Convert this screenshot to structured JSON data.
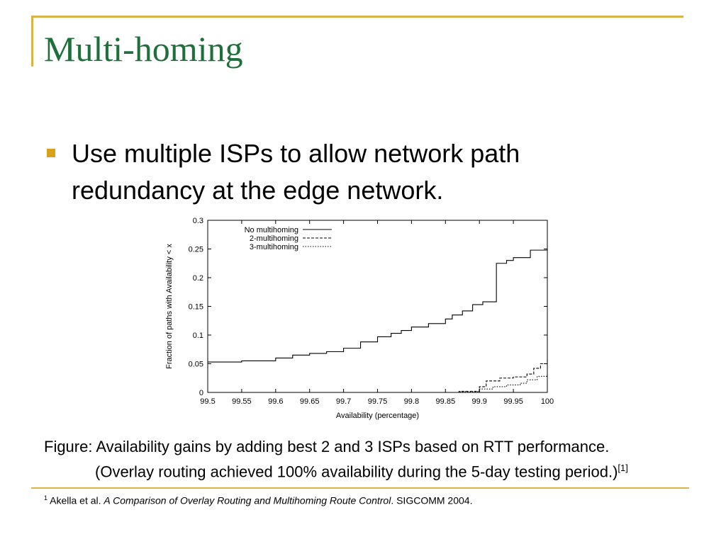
{
  "slide": {
    "title": "Multi-homing",
    "bullet": "Use multiple ISPs to allow network path redundancy at the edge network.",
    "caption_line1": "Figure: Availability gains by adding best 2 and 3 ISPs based on RTT performance.",
    "caption_line2": "(Overlay routing achieved 100% availability during the 5-day testing period.)",
    "caption_ref": "[1]",
    "footnote_mark": "1",
    "footnote_authors": " Akella et al. ",
    "footnote_title": "A Comparison of Overlay Routing and Multihoming Route Control",
    "footnote_venue": ". SIGCOMM 2004."
  },
  "colors": {
    "title": "#1f6f3a",
    "accent": "#d9b24a",
    "bullet": "#d9a21b"
  },
  "chart_data": {
    "type": "line",
    "title": "",
    "xlabel": "Availability (percentage)",
    "ylabel": "Fraction of paths with Availability < x",
    "xlim": [
      99.5,
      100
    ],
    "ylim": [
      0,
      0.3
    ],
    "x_ticks": [
      "99.5",
      "99.55",
      "99.6",
      "99.65",
      "99.7",
      "99.75",
      "99.8",
      "99.85",
      "99.9",
      "99.95",
      "100"
    ],
    "y_ticks": [
      "0",
      "0.05",
      "0.1",
      "0.15",
      "0.2",
      "0.25",
      "0.3"
    ],
    "legend_position": "top-left",
    "series": [
      {
        "name": "No multihoming",
        "style": "solid",
        "x": [
          99.5,
          99.55,
          99.6,
          99.625,
          99.65,
          99.675,
          99.7,
          99.725,
          99.75,
          99.77,
          99.785,
          99.8,
          99.825,
          99.85,
          99.86,
          99.875,
          99.89,
          99.905,
          99.925,
          99.94,
          99.95,
          99.975,
          100
        ],
        "y": [
          0.053,
          0.055,
          0.06,
          0.065,
          0.068,
          0.071,
          0.077,
          0.088,
          0.097,
          0.103,
          0.108,
          0.114,
          0.12,
          0.128,
          0.135,
          0.142,
          0.153,
          0.158,
          0.225,
          0.23,
          0.235,
          0.248,
          0.25
        ]
      },
      {
        "name": "2-multihoming",
        "style": "dashed",
        "x": [
          99.85,
          99.87,
          99.9,
          99.91,
          99.93,
          99.95,
          99.97,
          99.98,
          99.99,
          100
        ],
        "y": [
          0.0,
          0.002,
          0.01,
          0.02,
          0.025,
          0.027,
          0.032,
          0.042,
          0.05,
          0.058
        ]
      },
      {
        "name": "3-multihoming",
        "style": "dotted",
        "x": [
          99.85,
          99.87,
          99.9,
          99.92,
          99.94,
          99.96,
          99.97,
          99.985,
          100
        ],
        "y": [
          0.0,
          0.001,
          0.006,
          0.01,
          0.013,
          0.016,
          0.022,
          0.028,
          0.032
        ]
      }
    ]
  }
}
